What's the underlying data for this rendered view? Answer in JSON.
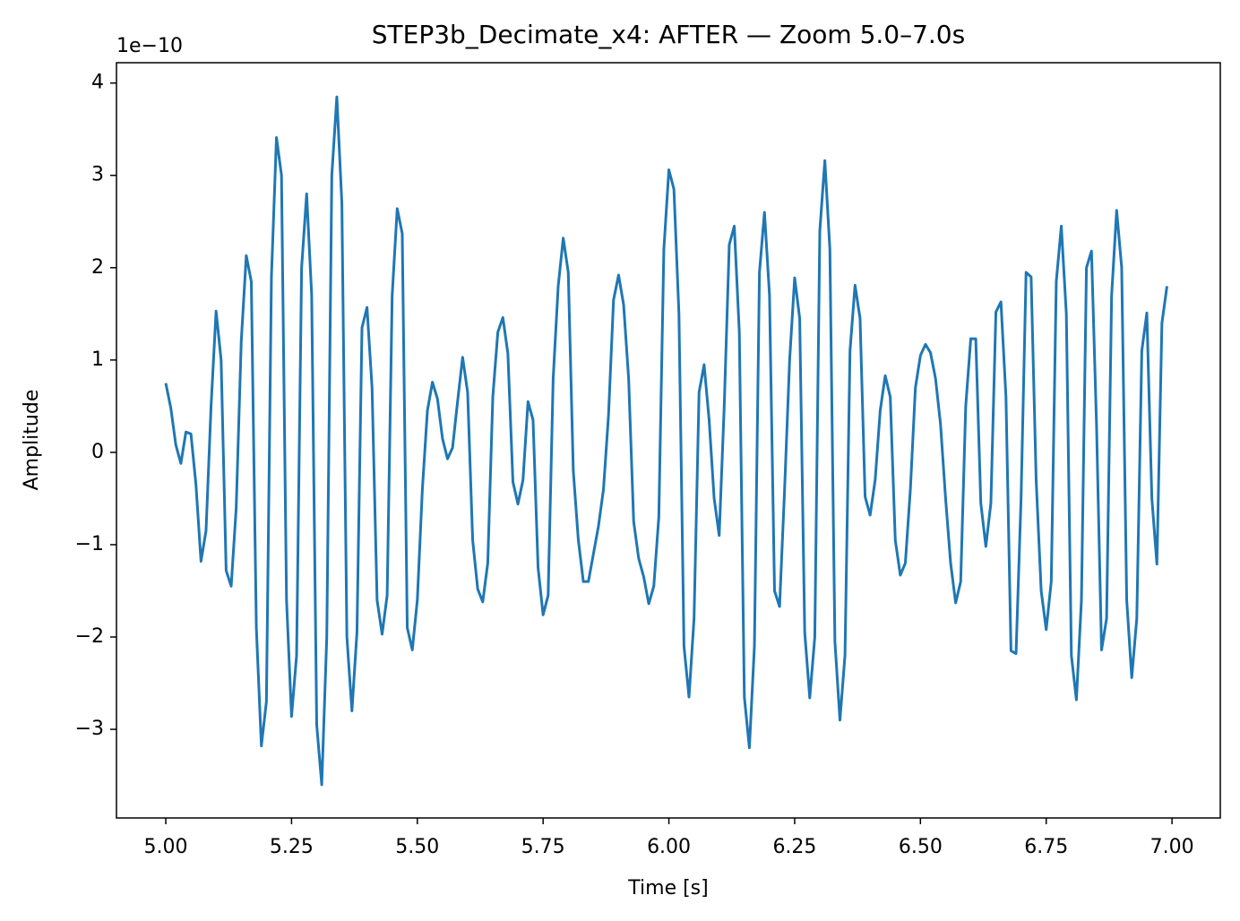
{
  "chart_data": {
    "type": "line",
    "title": "STEP3b_Decimate_x4: AFTER — Zoom 5.0–7.0s",
    "x_label": "Time [s]",
    "y_label": "Amplitude",
    "y_offset_label": "1e−10",
    "xlim": [
      4.902,
      7.096
    ],
    "ylim": [
      -3.96,
      4.22
    ],
    "xticks": [
      {
        "value": 5,
        "label": "5.00"
      },
      {
        "value": 5.25,
        "label": "5.25"
      },
      {
        "value": 5.5,
        "label": "5.50"
      },
      {
        "value": 5.75,
        "label": "5.75"
      },
      {
        "value": 6,
        "label": "6.00"
      },
      {
        "value": 6.25,
        "label": "6.25"
      },
      {
        "value": 6.5,
        "label": "6.50"
      },
      {
        "value": 6.75,
        "label": "6.75"
      },
      {
        "value": 7,
        "label": "7.00"
      }
    ],
    "yticks": [
      {
        "value": -3,
        "label": "−3"
      },
      {
        "value": -2,
        "label": "−2"
      },
      {
        "value": -1,
        "label": "−1"
      },
      0,
      1,
      2,
      3,
      4
    ],
    "grid": false,
    "x": [
      5,
      5.01,
      5.02,
      5.03,
      5.04,
      5.05,
      5.06,
      5.07,
      5.08,
      5.09,
      5.1,
      5.11,
      5.12,
      5.13,
      5.14,
      5.15,
      5.16,
      5.17,
      5.18,
      5.19,
      5.2,
      5.21,
      5.22,
      5.23,
      5.24,
      5.25,
      5.26,
      5.27,
      5.28,
      5.29,
      5.3,
      5.31,
      5.32,
      5.33,
      5.34,
      5.35,
      5.36,
      5.37,
      5.38,
      5.39,
      5.4,
      5.41,
      5.42,
      5.43,
      5.44,
      5.45,
      5.46,
      5.47,
      5.48,
      5.49,
      5.5,
      5.51,
      5.52,
      5.53,
      5.54,
      5.55,
      5.56,
      5.57,
      5.58,
      5.59,
      5.6,
      5.61,
      5.62,
      5.63,
      5.64,
      5.65,
      5.66,
      5.67,
      5.68,
      5.69,
      5.7,
      5.71,
      5.72,
      5.73,
      5.74,
      5.75,
      5.76,
      5.77,
      5.78,
      5.79,
      5.8,
      5.81,
      5.82,
      5.83,
      5.84,
      5.85,
      5.86,
      5.87,
      5.88,
      5.89,
      5.9,
      5.91,
      5.92,
      5.93,
      5.94,
      5.95,
      5.96,
      5.97,
      5.98,
      5.99,
      6,
      6.01,
      6.02,
      6.03,
      6.04,
      6.05,
      6.06,
      6.07,
      6.08,
      6.09,
      6.1,
      6.11,
      6.12,
      6.13,
      6.14,
      6.15,
      6.16,
      6.17,
      6.18,
      6.19,
      6.2,
      6.21,
      6.22,
      6.23,
      6.24,
      6.25,
      6.26,
      6.27,
      6.28,
      6.29,
      6.3,
      6.31,
      6.32,
      6.33,
      6.34,
      6.35,
      6.36,
      6.37,
      6.38,
      6.39,
      6.4,
      6.41,
      6.42,
      6.43,
      6.44,
      6.45,
      6.46,
      6.47,
      6.48,
      6.49,
      6.5,
      6.51,
      6.52,
      6.53,
      6.54,
      6.55,
      6.56,
      6.57,
      6.58,
      6.59,
      6.6,
      6.61,
      6.62,
      6.63,
      6.64,
      6.65,
      6.66,
      6.67,
      6.68,
      6.69,
      6.7,
      6.71,
      6.72,
      6.73,
      6.74,
      6.75,
      6.76,
      6.77,
      6.78,
      6.79,
      6.8,
      6.81,
      6.82,
      6.83,
      6.84,
      6.85,
      6.86,
      6.87,
      6.88,
      6.89,
      6.9,
      6.91,
      6.92,
      6.93,
      6.94,
      6.95,
      6.96,
      6.97,
      6.98,
      6.99
    ],
    "series": [
      {
        "color": "#1f77b4",
        "values": [
          0.75,
          0.48,
          0.08,
          -0.12,
          0.22,
          0.2,
          -0.35,
          -1.18,
          -0.85,
          0.5,
          1.53,
          1.0,
          -1.28,
          -1.45,
          -0.6,
          1.2,
          2.13,
          1.85,
          -1.9,
          -3.18,
          -2.7,
          1.9,
          3.41,
          3.0,
          -1.6,
          -2.86,
          -2.2,
          2.0,
          2.8,
          1.7,
          -2.95,
          -3.6,
          -2.0,
          3.0,
          3.85,
          2.7,
          -2.0,
          -2.8,
          -1.95,
          1.35,
          1.57,
          0.7,
          -1.6,
          -1.97,
          -1.55,
          1.7,
          2.64,
          2.37,
          -1.9,
          -2.14,
          -1.6,
          -0.4,
          0.45,
          0.76,
          0.58,
          0.15,
          -0.07,
          0.05,
          0.55,
          1.03,
          0.65,
          -0.95,
          -1.48,
          -1.62,
          -1.2,
          0.6,
          1.3,
          1.46,
          1.07,
          -0.32,
          -0.56,
          -0.3,
          0.55,
          0.35,
          -1.25,
          -1.76,
          -1.55,
          0.8,
          1.8,
          2.32,
          1.95,
          -0.2,
          -0.95,
          -1.4,
          -1.4,
          -1.1,
          -0.8,
          -0.4,
          0.4,
          1.65,
          1.92,
          1.6,
          0.8,
          -0.75,
          -1.15,
          -1.35,
          -1.64,
          -1.45,
          -0.7,
          2.2,
          3.06,
          2.85,
          1.5,
          -2.1,
          -2.65,
          -1.8,
          0.65,
          0.95,
          0.35,
          -0.5,
          -0.9,
          0.5,
          2.25,
          2.45,
          1.3,
          -2.65,
          -3.2,
          -2.1,
          1.95,
          2.6,
          1.7,
          -1.5,
          -1.67,
          -0.4,
          1.0,
          1.89,
          1.45,
          -1.95,
          -2.66,
          -2.0,
          2.4,
          3.16,
          2.2,
          -2.05,
          -2.9,
          -2.2,
          1.1,
          1.81,
          1.45,
          -0.48,
          -0.68,
          -0.3,
          0.45,
          0.83,
          0.6,
          -0.95,
          -1.33,
          -1.2,
          -0.4,
          0.7,
          1.05,
          1.17,
          1.08,
          0.8,
          0.3,
          -0.5,
          -1.2,
          -1.63,
          -1.4,
          0.5,
          1.23,
          1.23,
          -0.55,
          -1.02,
          -0.55,
          1.52,
          1.63,
          0.6,
          -2.15,
          -2.18,
          -0.5,
          1.95,
          1.9,
          -0.3,
          -1.5,
          -1.92,
          -1.4,
          1.85,
          2.45,
          1.5,
          -2.2,
          -2.68,
          -1.6,
          2.0,
          2.18,
          0.3,
          -2.14,
          -1.8,
          1.7,
          2.62,
          2.0,
          -1.6,
          -2.44,
          -1.8,
          1.1,
          1.51,
          -0.5,
          -1.21,
          1.4,
          1.8
        ]
      }
    ]
  }
}
